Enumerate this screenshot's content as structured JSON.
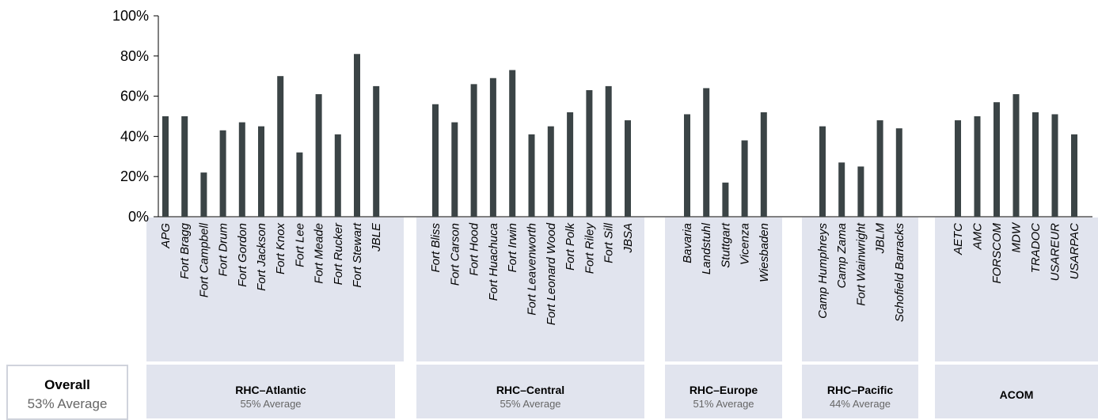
{
  "chart_data": {
    "type": "bar",
    "ylim": [
      0,
      100
    ],
    "yticks": [
      "0%",
      "20%",
      "40%",
      "60%",
      "80%",
      "100%"
    ],
    "colors": {
      "bar": "#3b4446",
      "group_bg": "#e1e4ee",
      "axis": "#000000"
    },
    "groups": [
      {
        "name": "RHC–Atlantic",
        "average": "55% Average",
        "categories": [
          "APG",
          "Fort Bragg",
          "Fort Campbell",
          "Fort Drum",
          "Fort Gordon",
          "Fort Jackson",
          "Fort Knox",
          "Fort Lee",
          "Fort Meade",
          "Fort Rucker",
          "Fort Stewart",
          "JBLE"
        ],
        "values": [
          50,
          50,
          22,
          43,
          47,
          45,
          70,
          32,
          61,
          41,
          81,
          65
        ]
      },
      {
        "name": "RHC–Central",
        "average": "55% Average",
        "categories": [
          "Fort Bliss",
          "Fort Carson",
          "Fort Hood",
          "Fort Huachuca",
          "Fort Irwin",
          "Fort Leavenworth",
          "Fort Leonard Wood",
          "Fort Polk",
          "Fort Riley",
          "Fort Sill",
          "JBSA"
        ],
        "values": [
          56,
          47,
          66,
          69,
          73,
          41,
          45,
          52,
          63,
          65,
          48
        ]
      },
      {
        "name": "RHC–Europe",
        "average": "51% Average",
        "categories": [
          "Bavaria",
          "Landstuhl",
          "Stuttgart",
          "Vicenza",
          "Wiesbaden"
        ],
        "values": [
          51,
          64,
          17,
          38,
          52
        ]
      },
      {
        "name": "RHC–Pacific",
        "average": "44% Average",
        "categories": [
          "Camp Humphreys",
          "Camp Zama",
          "Fort Wainwright",
          "JBLM",
          "Schofield Barracks"
        ],
        "values": [
          45,
          27,
          25,
          48,
          44
        ]
      },
      {
        "name": "ACOM",
        "average": "",
        "categories": [
          "AETC",
          "AMC",
          "FORSCOM",
          "MDW",
          "TRADOC",
          "USAREUR",
          "USARPAC"
        ],
        "values": [
          48,
          50,
          57,
          61,
          52,
          51,
          41
        ]
      }
    ]
  },
  "overall": {
    "label": "Overall",
    "average": "53% Average"
  }
}
